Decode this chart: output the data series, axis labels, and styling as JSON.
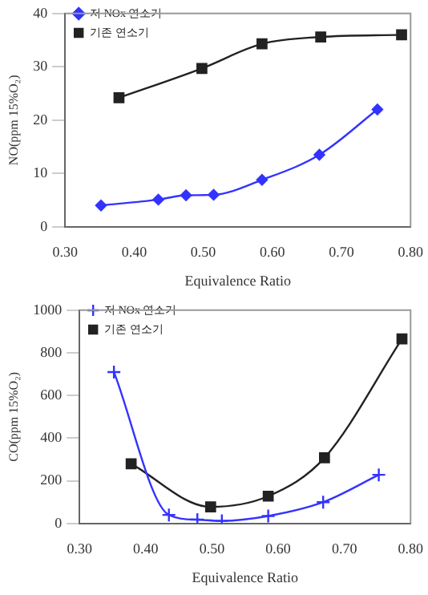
{
  "chart_data": [
    {
      "type": "line",
      "xlabel": "Equivalence Ratio",
      "ylabel": "NO(ppm 15%O₂)",
      "xlim": [
        0.3,
        0.8
      ],
      "xticks": [
        {
          "value": 0.3,
          "label": "0.30"
        },
        {
          "value": 0.4,
          "label": "0.40"
        },
        {
          "value": 0.5,
          "label": "0.50"
        },
        {
          "value": 0.6,
          "label": "0.60"
        },
        {
          "value": 0.7,
          "label": "0.70"
        },
        {
          "value": 0.8,
          "label": "0.80"
        }
      ],
      "ylim": [
        0,
        40
      ],
      "yticks": [
        0,
        10,
        20,
        30,
        40
      ],
      "grid": false,
      "legend": "top left",
      "series": [
        {
          "name": "저 NOx 연소기",
          "color": "#3333ff",
          "marker": "diamond",
          "x": [
            0.352,
            0.435,
            0.475,
            0.515,
            0.585,
            0.668,
            0.752
          ],
          "values": [
            4,
            5.1,
            5.9,
            6,
            8.8,
            13.5,
            22
          ]
        },
        {
          "name": "기존 연소기",
          "color": "#222222",
          "marker": "square",
          "x": [
            0.378,
            0.498,
            0.585,
            0.67,
            0.787
          ],
          "values": [
            24.2,
            29.7,
            34.3,
            35.6,
            36
          ]
        }
      ]
    },
    {
      "type": "line",
      "xlabel": "Equivalence Ratio",
      "ylabel": "CO(ppm 15%O₂)",
      "xlim": [
        0.3,
        0.8
      ],
      "xticks": [
        {
          "value": 0.3,
          "label": "0.30"
        },
        {
          "value": 0.4,
          "label": "0.40"
        },
        {
          "value": 0.5,
          "label": "0.50"
        },
        {
          "value": 0.6,
          "label": "0.60"
        },
        {
          "value": 0.7,
          "label": "0.70"
        },
        {
          "value": 0.8,
          "label": "0.80"
        }
      ],
      "ylim": [
        0,
        1000
      ],
      "yticks": [
        0,
        200,
        400,
        600,
        800,
        1000
      ],
      "grid": false,
      "legend": "top left",
      "series": [
        {
          "name": "저 NOx 연소기",
          "color": "#3333ff",
          "marker": "cross",
          "x": [
            0.352,
            0.435,
            0.478,
            0.515,
            0.585,
            0.668,
            0.752
          ],
          "values": [
            710,
            40,
            18,
            12,
            35,
            100,
            228
          ]
        },
        {
          "name": "기존 연소기",
          "color": "#222222",
          "marker": "square",
          "x": [
            0.378,
            0.498,
            0.585,
            0.67,
            0.787
          ],
          "values": [
            280,
            78,
            128,
            308,
            865
          ]
        }
      ]
    }
  ]
}
